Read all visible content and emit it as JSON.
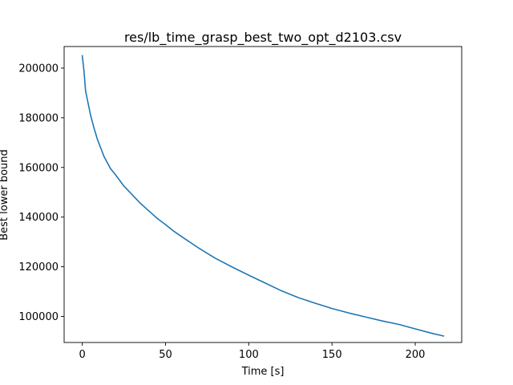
{
  "chart_data": {
    "type": "line",
    "title": "res/lb_time_grasp_best_two_opt_d2103.csv",
    "xlabel": "Time [s]",
    "ylabel": "Best lower bound",
    "xlim": [
      -10.9,
      227.9
    ],
    "ylim": [
      89500,
      208700
    ],
    "x_ticks": [
      0,
      50,
      100,
      150,
      200
    ],
    "y_ticks": [
      100000,
      120000,
      140000,
      160000,
      180000,
      200000
    ],
    "grid": false,
    "legend": "none",
    "series": [
      {
        "color": "#1f77b4",
        "x": [
          0,
          1,
          2,
          3,
          5,
          7,
          9,
          11,
          13,
          15,
          17,
          20,
          25,
          30,
          35,
          40,
          45,
          50,
          55,
          60,
          70,
          80,
          90,
          100,
          110,
          120,
          130,
          140,
          150,
          160,
          170,
          180,
          190,
          200,
          210,
          217
        ],
        "y": [
          205000,
          199000,
          190800,
          187500,
          181000,
          176000,
          171500,
          168000,
          164500,
          162000,
          159500,
          157000,
          152500,
          149000,
          145500,
          142500,
          139500,
          137000,
          134300,
          132000,
          127500,
          123400,
          119900,
          116600,
          113400,
          110200,
          107500,
          105300,
          103200,
          101400,
          99800,
          98200,
          96800,
          95000,
          93200,
          92100
        ]
      }
    ]
  }
}
